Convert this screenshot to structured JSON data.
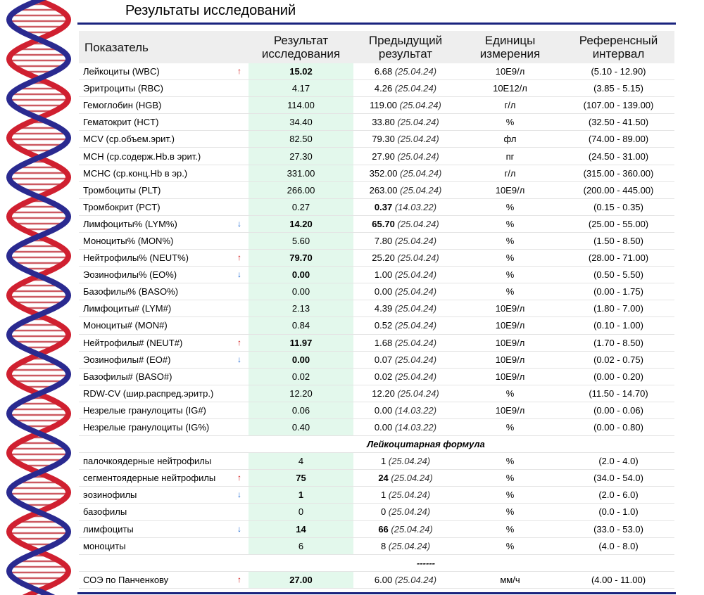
{
  "title": "Результаты исследований",
  "table": {
    "headers": [
      "Показатель",
      "Результат исследования",
      "Предыдущий результат",
      "Единицы измерения",
      "Референсный интервал"
    ],
    "sections": [
      {
        "rows": [
          {
            "name": "Лейкоциты (WBC)",
            "flag": "↑",
            "flag_color": "#d01010",
            "result": "15.02",
            "prev": "6.68",
            "prev_date": "(25.04.24)",
            "unit": "10E9/л",
            "ref": "(5.10 - 12.90)"
          },
          {
            "name": "Эритроциты (RBC)",
            "result": "4.17",
            "prev": "4.26",
            "prev_date": "(25.04.24)",
            "unit": "10E12/л",
            "ref": "(3.85 - 5.15)"
          },
          {
            "name": "Гемоглобин (HGB)",
            "result": "114.00",
            "prev": "119.00",
            "prev_date": "(25.04.24)",
            "unit": "г/л",
            "ref": "(107.00 - 139.00)"
          },
          {
            "name": "Гематокрит (HCT)",
            "result": "34.40",
            "prev": "33.80",
            "prev_date": "(25.04.24)",
            "unit": "%",
            "ref": "(32.50 - 41.50)"
          },
          {
            "name": "MCV (ср.объем.эрит.)",
            "result": "82.50",
            "prev": "79.30",
            "prev_date": "(25.04.24)",
            "unit": "фл",
            "ref": "(74.00 - 89.00)"
          },
          {
            "name": "MCH (ср.содерж.Hb.в эрит.)",
            "result": "27.30",
            "prev": "27.90",
            "prev_date": "(25.04.24)",
            "unit": "пг",
            "ref": "(24.50 - 31.00)"
          },
          {
            "name": "MCHC (ср.конц.Hb в эр.)",
            "result": "331.00",
            "prev": "352.00",
            "prev_date": "(25.04.24)",
            "unit": "г/л",
            "ref": "(315.00 - 360.00)"
          },
          {
            "name": "Тромбоциты (PLT)",
            "result": "266.00",
            "prev": "263.00",
            "prev_date": "(25.04.24)",
            "unit": "10E9/л",
            "ref": "(200.00 - 445.00)"
          },
          {
            "name": "Тромбокрит (PCT)",
            "result": "0.27",
            "prev": "0.37",
            "prev_bold": true,
            "prev_date": "(14.03.22)",
            "unit": "%",
            "ref": "(0.15 - 0.35)"
          },
          {
            "name": "Лимфоциты% (LYM%)",
            "flag": "↓",
            "flag_color": "#1060d0",
            "result": "14.20",
            "prev": "65.70",
            "prev_bold": true,
            "prev_date": "(25.04.24)",
            "unit": "%",
            "ref": "(25.00 - 55.00)"
          },
          {
            "name": "Моноциты% (MON%)",
            "result": "5.60",
            "prev": "7.80",
            "prev_date": "(25.04.24)",
            "unit": "%",
            "ref": "(1.50 - 8.50)"
          },
          {
            "name": "Нейтрофилы% (NEUT%)",
            "flag": "↑",
            "flag_color": "#d01010",
            "result": "79.70",
            "prev": "25.20",
            "prev_date": "(25.04.24)",
            "unit": "%",
            "ref": "(28.00 - 71.00)"
          },
          {
            "name": "Эозинофилы% (EO%)",
            "flag": "↓",
            "flag_color": "#1060d0",
            "result": "0.00",
            "prev": "1.00",
            "prev_date": "(25.04.24)",
            "unit": "%",
            "ref": "(0.50 - 5.50)"
          },
          {
            "name": "Базофилы% (BASO%)",
            "result": "0.00",
            "prev": "0.00",
            "prev_date": "(25.04.24)",
            "unit": "%",
            "ref": "(0.00 - 1.75)"
          },
          {
            "name": "Лимфоциты# (LYM#)",
            "result": "2.13",
            "prev": "4.39",
            "prev_date": "(25.04.24)",
            "unit": "10E9/л",
            "ref": "(1.80 - 7.00)"
          },
          {
            "name": "Моноциты# (MON#)",
            "result": "0.84",
            "prev": "0.52",
            "prev_date": "(25.04.24)",
            "unit": "10E9/л",
            "ref": "(0.10 - 1.00)"
          },
          {
            "name": "Нейтрофилы# (NEUT#)",
            "flag": "↑",
            "flag_color": "#d01010",
            "result": "11.97",
            "prev": "1.68",
            "prev_date": "(25.04.24)",
            "unit": "10E9/л",
            "ref": "(1.70 - 8.50)"
          },
          {
            "name": "Эозинофилы# (EO#)",
            "flag": "↓",
            "flag_color": "#1060d0",
            "result": "0.00",
            "prev": "0.07",
            "prev_date": "(25.04.24)",
            "unit": "10E9/л",
            "ref": "(0.02 - 0.75)"
          },
          {
            "name": "Базофилы# (BASO#)",
            "result": "0.02",
            "prev": "0.02",
            "prev_date": "(25.04.24)",
            "unit": "10E9/л",
            "ref": "(0.00 - 0.20)"
          },
          {
            "name": "RDW-CV (шир.распред.эритр.)",
            "result": "12.20",
            "prev": "12.20",
            "prev_date": "(25.04.24)",
            "unit": "%",
            "ref": "(11.50 - 14.70)"
          },
          {
            "name": "Незрелые гранулоциты (IG#)",
            "result": "0.06",
            "prev": "0.00",
            "prev_date": "(14.03.22)",
            "unit": "10E9/л",
            "ref": "(0.00 - 0.06)"
          },
          {
            "name": "Незрелые гранулоциты (IG%)",
            "result": "0.40",
            "prev": "0.00",
            "prev_date": "(14.03.22)",
            "unit": "%",
            "ref": "(0.00 - 0.80)"
          }
        ]
      },
      {
        "title": "Лейкоцитарная формула",
        "rows": [
          {
            "name": "палочкоядерные нейтрофилы",
            "result": "4",
            "prev": "1",
            "prev_date": "(25.04.24)",
            "unit": "%",
            "ref": "(2.0 - 4.0)"
          },
          {
            "name": "сегментоядерные нейтрофилы",
            "flag": "↑",
            "flag_color": "#d01010",
            "result": "75",
            "prev": "24",
            "prev_bold": true,
            "prev_date": "(25.04.24)",
            "unit": "%",
            "ref": "(34.0 - 54.0)"
          },
          {
            "name": "эозинофилы",
            "flag": "↓",
            "flag_color": "#1060d0",
            "result": "1",
            "prev": "1",
            "prev_date": "(25.04.24)",
            "unit": "%",
            "ref": "(2.0 - 6.0)"
          },
          {
            "name": "базофилы",
            "result": "0",
            "prev": "0",
            "prev_date": "(25.04.24)",
            "unit": "%",
            "ref": "(0.0 - 1.0)"
          },
          {
            "name": "лимфоциты",
            "flag": "↓",
            "flag_color": "#1060d0",
            "result": "14",
            "prev": "66",
            "prev_bold": true,
            "prev_date": "(25.04.24)",
            "unit": "%",
            "ref": "(33.0 - 53.0)"
          },
          {
            "name": "моноциты",
            "result": "6",
            "prev": "8",
            "prev_date": "(25.04.24)",
            "unit": "%",
            "ref": "(4.0 - 8.0)"
          }
        ]
      },
      {
        "title": "------",
        "rows": [
          {
            "name": "СОЭ по Панченкову",
            "flag": "↑",
            "flag_color": "#d01010",
            "result": "27.00",
            "prev": "6.00",
            "prev_date": "(25.04.24)",
            "unit": "мм/ч",
            "ref": "(4.00 - 11.00)"
          }
        ]
      }
    ]
  }
}
